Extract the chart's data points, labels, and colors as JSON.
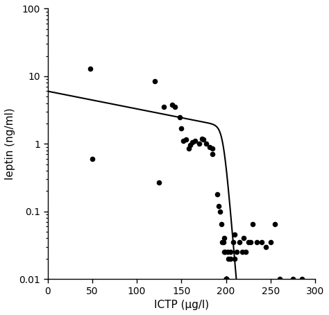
{
  "scatter_x": [
    48,
    50,
    120,
    125,
    130,
    140,
    143,
    148,
    150,
    152,
    155,
    158,
    160,
    162,
    165,
    170,
    173,
    175,
    178,
    182,
    185,
    185,
    190,
    192,
    193,
    195,
    196,
    197,
    198,
    198,
    199,
    200,
    200,
    200,
    200,
    200,
    200,
    200,
    200,
    200,
    202,
    203,
    205,
    205,
    208,
    210,
    210,
    212,
    215,
    218,
    220,
    222,
    225,
    228,
    230,
    235,
    240,
    245,
    250,
    255,
    260,
    275,
    285
  ],
  "scatter_y": [
    13.0,
    0.6,
    8.5,
    0.27,
    3.5,
    3.8,
    3.5,
    2.5,
    1.7,
    1.1,
    1.15,
    0.85,
    0.95,
    1.05,
    1.1,
    1.0,
    1.2,
    1.15,
    1.0,
    0.9,
    0.85,
    0.7,
    0.18,
    0.12,
    0.1,
    0.065,
    0.035,
    0.035,
    0.025,
    0.04,
    0.025,
    0.01,
    0.01,
    0.01,
    0.01,
    0.01,
    0.01,
    0.01,
    0.01,
    0.01,
    0.025,
    0.02,
    0.025,
    0.02,
    0.035,
    0.045,
    0.02,
    0.025,
    0.035,
    0.025,
    0.04,
    0.025,
    0.035,
    0.035,
    0.065,
    0.035,
    0.035,
    0.03,
    0.035,
    0.065,
    0.01,
    0.01,
    0.01
  ],
  "xlabel": "ICTP (μg/l)",
  "ylabel": "leptin (ng/ml)",
  "xlim": [
    0,
    300
  ],
  "ylim": [
    0.01,
    100
  ],
  "xticks": [
    0,
    50,
    100,
    150,
    200,
    250,
    300
  ],
  "yticks": [
    0.01,
    0.1,
    1,
    10,
    100
  ],
  "curve_a": 6.0,
  "curve_b": 0.006,
  "curve_x0": 197,
  "curve_k": 0.35,
  "curve_x_end": 212
}
